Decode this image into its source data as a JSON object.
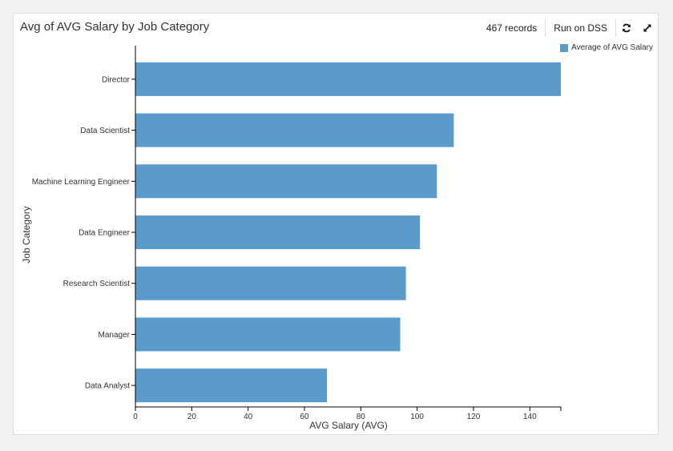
{
  "card": {
    "title": "Avg of AVG Salary by Job Category"
  },
  "toolbar": {
    "records": "467 records",
    "run_label": "Run on DSS",
    "refresh_icon": "refresh-icon",
    "expand_icon": "expand-icon"
  },
  "colors": {
    "bar": "#5b9bcb",
    "axis": "#000000"
  },
  "chart_data": {
    "type": "bar",
    "orientation": "horizontal",
    "title": "Avg of AVG Salary by Job Category",
    "xlabel": "AVG Salary (AVG)",
    "ylabel": "Job Category",
    "categories": [
      "Director",
      "Data Scientist",
      "Machine Learning Engineer",
      "Data Engineer",
      "Research Scientist",
      "Manager",
      "Data Analyst"
    ],
    "series": [
      {
        "name": "Average of AVG Salary",
        "values": [
          151,
          113,
          107,
          101,
          96,
          94,
          68
        ]
      }
    ],
    "xlim": [
      0,
      151
    ],
    "xticks": [
      "0",
      "20",
      "40",
      "60",
      "80",
      "100",
      "120",
      "140"
    ],
    "grid": false,
    "legend": "top-right"
  }
}
